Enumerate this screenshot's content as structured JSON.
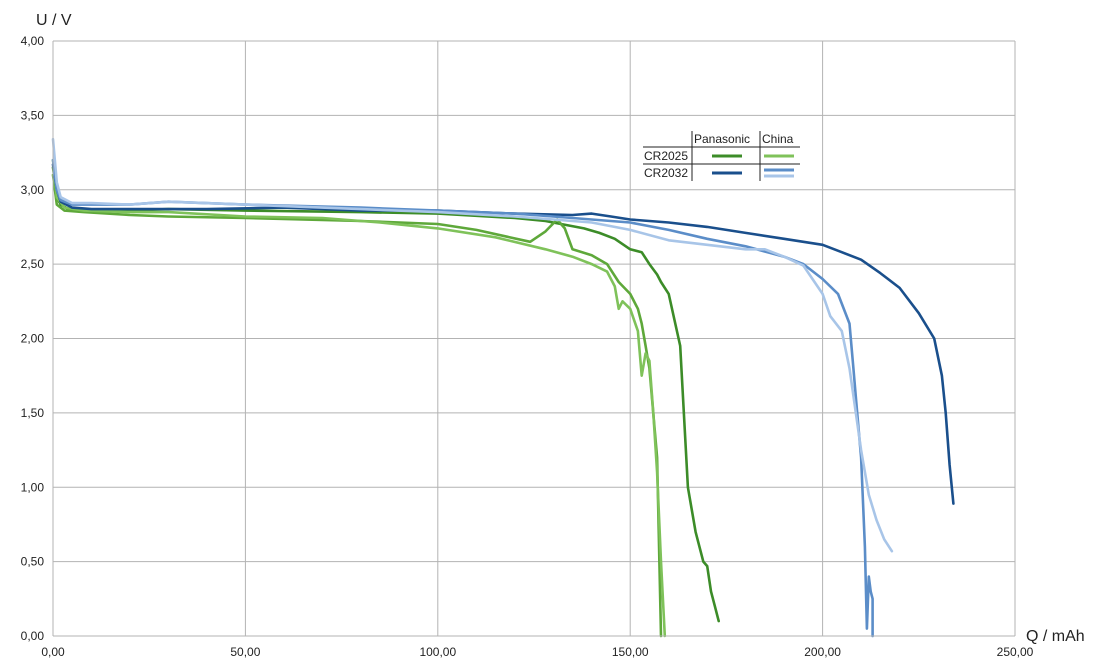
{
  "chart_data": {
    "type": "line",
    "title": "",
    "xlabel": "Q / mAh",
    "ylabel": "U / V",
    "xlim": [
      0,
      250
    ],
    "ylim": [
      0,
      4
    ],
    "x_ticks": [
      "0,00",
      "50,00",
      "100,00",
      "150,00",
      "200,00",
      "250,00"
    ],
    "y_ticks": [
      "0,00",
      "0,50",
      "1,00",
      "1,50",
      "2,00",
      "2,50",
      "3,00",
      "3,50",
      "4,00"
    ],
    "grid": true,
    "legend": {
      "placement": "top-right",
      "columns": [
        "Panasonic",
        "China"
      ],
      "rows": [
        "CR2025",
        "CR2032"
      ]
    },
    "series": [
      {
        "group": "CR2025 Panasonic",
        "color": "#3c8c28",
        "points": [
          [
            0,
            3.15
          ],
          [
            1,
            2.95
          ],
          [
            2,
            2.9
          ],
          [
            4,
            2.87
          ],
          [
            10,
            2.86
          ],
          [
            20,
            2.86
          ],
          [
            30,
            2.87
          ],
          [
            50,
            2.86
          ],
          [
            80,
            2.85
          ],
          [
            100,
            2.84
          ],
          [
            120,
            2.81
          ],
          [
            128,
            2.79
          ],
          [
            132,
            2.77
          ],
          [
            138,
            2.74
          ],
          [
            142,
            2.71
          ],
          [
            146,
            2.67
          ],
          [
            150,
            2.6
          ],
          [
            153,
            2.58
          ],
          [
            155,
            2.5
          ],
          [
            157,
            2.43
          ],
          [
            158,
            2.38
          ],
          [
            160,
            2.3
          ],
          [
            163,
            1.95
          ],
          [
            165,
            1.0
          ],
          [
            167,
            0.7
          ],
          [
            169,
            0.5
          ],
          [
            170,
            0.47
          ],
          [
            171,
            0.3
          ],
          [
            172,
            0.2
          ],
          [
            173,
            0.1
          ]
        ]
      },
      {
        "group": "CR2025 Panasonic",
        "color": "#5ea83a",
        "points": [
          [
            0,
            3.1
          ],
          [
            1,
            2.9
          ],
          [
            3,
            2.86
          ],
          [
            8,
            2.85
          ],
          [
            20,
            2.83
          ],
          [
            30,
            2.82
          ],
          [
            50,
            2.81
          ],
          [
            80,
            2.79
          ],
          [
            100,
            2.77
          ],
          [
            110,
            2.73
          ],
          [
            124,
            2.65
          ],
          [
            128,
            2.72
          ],
          [
            131,
            2.8
          ],
          [
            133,
            2.74
          ],
          [
            135,
            2.6
          ],
          [
            140,
            2.56
          ],
          [
            144,
            2.5
          ],
          [
            147,
            2.38
          ],
          [
            150,
            2.3
          ],
          [
            152,
            2.2
          ],
          [
            153,
            2.1
          ],
          [
            154,
            1.95
          ],
          [
            155,
            1.8
          ],
          [
            157,
            1.2
          ],
          [
            158,
            0.0
          ]
        ]
      },
      {
        "group": "CR2025 China",
        "color": "#7fc25a",
        "points": [
          [
            0,
            3.2
          ],
          [
            1,
            2.95
          ],
          [
            3,
            2.88
          ],
          [
            8,
            2.86
          ],
          [
            20,
            2.85
          ],
          [
            30,
            2.85
          ],
          [
            50,
            2.82
          ],
          [
            70,
            2.81
          ],
          [
            85,
            2.78
          ],
          [
            100,
            2.74
          ],
          [
            115,
            2.68
          ],
          [
            128,
            2.6
          ],
          [
            135,
            2.55
          ],
          [
            140,
            2.5
          ],
          [
            144,
            2.45
          ],
          [
            146,
            2.35
          ],
          [
            147,
            2.2
          ],
          [
            148,
            2.25
          ],
          [
            150,
            2.2
          ],
          [
            152,
            2.05
          ],
          [
            153,
            1.75
          ],
          [
            154,
            1.9
          ],
          [
            155,
            1.85
          ],
          [
            156,
            1.5
          ],
          [
            157,
            1.1
          ],
          [
            158,
            0.5
          ],
          [
            159,
            0.0
          ]
        ]
      },
      {
        "group": "CR2032 Panasonic",
        "color": "#1a4f8c",
        "points": [
          [
            0,
            3.17
          ],
          [
            1,
            3.0
          ],
          [
            2,
            2.92
          ],
          [
            5,
            2.88
          ],
          [
            10,
            2.87
          ],
          [
            20,
            2.87
          ],
          [
            40,
            2.87
          ],
          [
            60,
            2.88
          ],
          [
            80,
            2.86
          ],
          [
            100,
            2.86
          ],
          [
            120,
            2.84
          ],
          [
            135,
            2.83
          ],
          [
            140,
            2.84
          ],
          [
            145,
            2.82
          ],
          [
            150,
            2.8
          ],
          [
            155,
            2.79
          ],
          [
            160,
            2.78
          ],
          [
            170,
            2.75
          ],
          [
            180,
            2.71
          ],
          [
            190,
            2.67
          ],
          [
            200,
            2.63
          ],
          [
            205,
            2.58
          ],
          [
            210,
            2.53
          ],
          [
            215,
            2.44
          ],
          [
            220,
            2.34
          ],
          [
            225,
            2.17
          ],
          [
            229,
            2.0
          ],
          [
            231,
            1.75
          ],
          [
            232,
            1.5
          ],
          [
            233,
            1.15
          ],
          [
            234,
            0.89
          ]
        ]
      },
      {
        "group": "CR2032 China",
        "color": "#5b8dc8",
        "points": [
          [
            0,
            3.2
          ],
          [
            1,
            3.0
          ],
          [
            2,
            2.93
          ],
          [
            5,
            2.9
          ],
          [
            10,
            2.9
          ],
          [
            20,
            2.9
          ],
          [
            30,
            2.92
          ],
          [
            50,
            2.9
          ],
          [
            80,
            2.88
          ],
          [
            100,
            2.86
          ],
          [
            120,
            2.84
          ],
          [
            130,
            2.82
          ],
          [
            140,
            2.8
          ],
          [
            150,
            2.78
          ],
          [
            160,
            2.73
          ],
          [
            170,
            2.67
          ],
          [
            180,
            2.62
          ],
          [
            190,
            2.55
          ],
          [
            195,
            2.5
          ],
          [
            200,
            2.4
          ],
          [
            204,
            2.3
          ],
          [
            207,
            2.1
          ],
          [
            208,
            1.8
          ],
          [
            209,
            1.5
          ],
          [
            210,
            1.2
          ],
          [
            211,
            0.6
          ],
          [
            211.5,
            0.05
          ],
          [
            212,
            0.4
          ],
          [
            212.5,
            0.3
          ],
          [
            213,
            0.25
          ],
          [
            213,
            0.0
          ]
        ]
      },
      {
        "group": "CR2032 China",
        "color": "#a8c5e8",
        "points": [
          [
            0,
            3.34
          ],
          [
            1,
            3.05
          ],
          [
            2,
            2.95
          ],
          [
            5,
            2.91
          ],
          [
            10,
            2.91
          ],
          [
            20,
            2.9
          ],
          [
            30,
            2.92
          ],
          [
            50,
            2.9
          ],
          [
            80,
            2.87
          ],
          [
            100,
            2.85
          ],
          [
            120,
            2.82
          ],
          [
            130,
            2.8
          ],
          [
            140,
            2.78
          ],
          [
            150,
            2.73
          ],
          [
            160,
            2.66
          ],
          [
            170,
            2.63
          ],
          [
            180,
            2.6
          ],
          [
            185,
            2.6
          ],
          [
            190,
            2.55
          ],
          [
            195,
            2.49
          ],
          [
            200,
            2.3
          ],
          [
            202,
            2.15
          ],
          [
            205,
            2.05
          ],
          [
            207,
            1.8
          ],
          [
            210,
            1.25
          ],
          [
            212,
            0.95
          ],
          [
            214,
            0.78
          ],
          [
            216,
            0.65
          ],
          [
            218,
            0.57
          ]
        ]
      }
    ]
  }
}
